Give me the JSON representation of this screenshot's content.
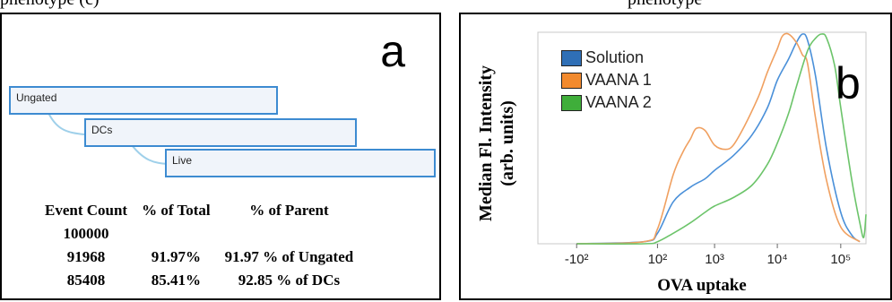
{
  "top_text": {
    "left": "phenotype (c)",
    "right": "phenotype"
  },
  "panel_a": {
    "letter": "a",
    "gates": [
      "Ungated",
      "DCs",
      "Live"
    ],
    "table": {
      "headers": [
        "Event Count",
        "% of Total",
        "% of Parent"
      ],
      "rows": [
        [
          "100000",
          "",
          ""
        ],
        [
          "91968",
          "91.97%",
          "91.97 % of Ungated"
        ],
        [
          "85408",
          "85.41%",
          "92.85 % of DCs"
        ]
      ]
    }
  },
  "chart_data": {
    "type": "line",
    "panel_letter": "b",
    "xlabel": "OVA uptake",
    "ylabel": "Median Fl. Intensity (arb. units)",
    "ylabel_lines": [
      "Median Fl. Intensity",
      "(arb. units)"
    ],
    "x_scale": "biexponential",
    "x_ticks": [
      {
        "value": -100,
        "label": "-10²"
      },
      {
        "value": 100,
        "label": "10²"
      },
      {
        "value": 1000,
        "label": "10³"
      },
      {
        "value": 10000,
        "label": "10⁴"
      },
      {
        "value": 100000,
        "label": "10⁵"
      }
    ],
    "xlim": [
      -500,
      250000
    ],
    "ylim": [
      0,
      1
    ],
    "legend_position": "top-left",
    "series": [
      {
        "name": "Solution",
        "color": "#4a90d9",
        "x": [
          -100,
          50,
          100,
          200,
          400,
          700,
          1000,
          2000,
          4000,
          7000,
          10000,
          15000,
          20000,
          25000,
          30000,
          40000,
          60000,
          100000,
          150000,
          200000
        ],
        "y": [
          0.0,
          0.01,
          0.05,
          0.2,
          0.27,
          0.31,
          0.35,
          0.42,
          0.52,
          0.65,
          0.78,
          0.88,
          0.96,
          1.0,
          0.97,
          0.8,
          0.45,
          0.15,
          0.04,
          0.01
        ]
      },
      {
        "name": "VAANA 1",
        "color": "#f0a060",
        "x": [
          -100,
          50,
          100,
          200,
          300,
          400,
          500,
          700,
          1000,
          1500,
          2000,
          3000,
          5000,
          7000,
          10000,
          12000,
          15000,
          20000,
          25000,
          30000,
          40000,
          60000,
          100000,
          200000
        ],
        "y": [
          0.0,
          0.01,
          0.07,
          0.33,
          0.44,
          0.5,
          0.55,
          0.54,
          0.47,
          0.45,
          0.47,
          0.56,
          0.7,
          0.82,
          0.93,
          0.99,
          1.0,
          0.96,
          0.9,
          0.86,
          0.6,
          0.3,
          0.08,
          0.01
        ]
      },
      {
        "name": "VAANA 2",
        "color": "#6cc46a",
        "x": [
          -100,
          50,
          100,
          200,
          400,
          700,
          1000,
          2000,
          4000,
          7000,
          10000,
          15000,
          20000,
          30000,
          40000,
          50000,
          60000,
          80000,
          100000,
          150000,
          200000,
          230000,
          250000
        ],
        "y": [
          0.0,
          0.0,
          0.01,
          0.05,
          0.1,
          0.15,
          0.18,
          0.22,
          0.28,
          0.38,
          0.48,
          0.62,
          0.75,
          0.92,
          0.98,
          1.0,
          0.98,
          0.85,
          0.65,
          0.3,
          0.1,
          0.03,
          0.14
        ]
      }
    ]
  }
}
